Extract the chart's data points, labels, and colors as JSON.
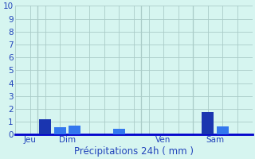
{
  "background_color": "#d6f5f0",
  "bar_color_dark": "#1a35b0",
  "bar_color_mid": "#2255cc",
  "bar_color_light": "#3377ee",
  "ylim": [
    0,
    10
  ],
  "yticks": [
    0,
    1,
    2,
    3,
    4,
    5,
    6,
    7,
    8,
    9,
    10
  ],
  "grid_color": "#aaccc8",
  "axis_color": "#0000cc",
  "tick_label_color": "#2244bb",
  "xlabel": "Précipitations 24h ( mm )",
  "xlabel_fontsize": 8.5,
  "tick_fontsize": 7.5,
  "bars": [
    {
      "x": 2,
      "height": 1.2,
      "color": "#1a35b0"
    },
    {
      "x": 3,
      "height": 0.55,
      "color": "#3377ee"
    },
    {
      "x": 4,
      "height": 0.7,
      "color": "#3377ee"
    },
    {
      "x": 7,
      "height": 0.45,
      "color": "#3377ee"
    },
    {
      "x": 13,
      "height": 1.75,
      "color": "#1a35b0"
    },
    {
      "x": 14,
      "height": 0.65,
      "color": "#3377ee"
    }
  ],
  "bar_width": 0.8,
  "xlim": [
    0,
    16
  ],
  "day_ticks": [
    1,
    3.5,
    7,
    10,
    13.5
  ],
  "day_labels": [
    "Jeu",
    "Dim",
    "",
    "Ven",
    "Sam"
  ],
  "vlines": [
    1.5,
    8.5,
    12.0
  ],
  "spine_color": "#0000cc"
}
